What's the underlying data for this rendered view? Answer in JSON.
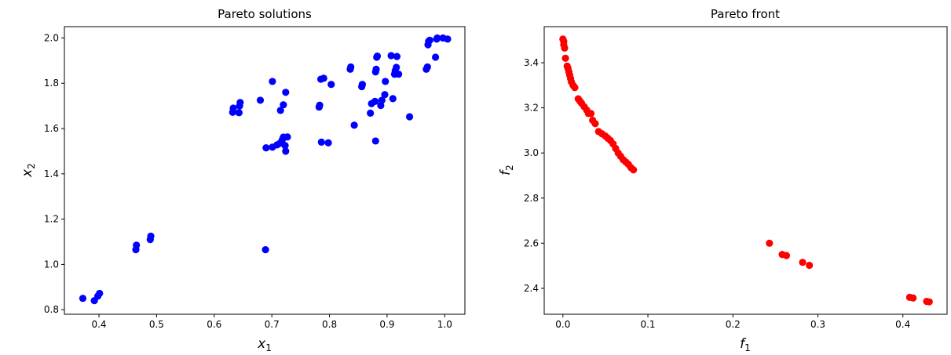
{
  "chart_data": [
    {
      "type": "scatter",
      "title": "Pareto solutions",
      "xlabel": "x",
      "xlabel_sub": "1",
      "ylabel": "x",
      "ylabel_sub": "2",
      "xlim": [
        0.34,
        1.035
      ],
      "ylim": [
        0.78,
        2.05
      ],
      "xticks": [
        0.4,
        0.5,
        0.6,
        0.7,
        0.8,
        0.9,
        1.0
      ],
      "yticks": [
        0.8,
        1.0,
        1.2,
        1.4,
        1.6,
        1.8,
        2.0
      ],
      "grid": false,
      "color": "#0000ff",
      "points": [
        [
          0.372,
          0.85
        ],
        [
          0.392,
          0.84
        ],
        [
          0.398,
          0.86
        ],
        [
          0.401,
          0.872
        ],
        [
          0.464,
          1.065
        ],
        [
          0.465,
          1.085
        ],
        [
          0.489,
          1.11
        ],
        [
          0.49,
          1.125
        ],
        [
          0.689,
          1.065
        ],
        [
          0.632,
          1.672
        ],
        [
          0.633,
          1.69
        ],
        [
          0.643,
          1.67
        ],
        [
          0.644,
          1.7
        ],
        [
          0.645,
          1.715
        ],
        [
          0.68,
          1.725
        ],
        [
          0.701,
          1.808
        ],
        [
          0.715,
          1.68
        ],
        [
          0.72,
          1.705
        ],
        [
          0.724,
          1.76
        ],
        [
          0.69,
          1.515
        ],
        [
          0.701,
          1.518
        ],
        [
          0.709,
          1.528
        ],
        [
          0.714,
          1.535
        ],
        [
          0.718,
          1.55
        ],
        [
          0.72,
          1.562
        ],
        [
          0.723,
          1.525
        ],
        [
          0.724,
          1.5
        ],
        [
          0.727,
          1.563
        ],
        [
          0.782,
          1.695
        ],
        [
          0.783,
          1.703
        ],
        [
          0.785,
          1.818
        ],
        [
          0.79,
          1.822
        ],
        [
          0.803,
          1.795
        ],
        [
          0.786,
          1.54
        ],
        [
          0.798,
          1.537
        ],
        [
          0.843,
          1.615
        ],
        [
          0.88,
          1.545
        ],
        [
          0.836,
          1.862
        ],
        [
          0.837,
          1.872
        ],
        [
          0.856,
          1.785
        ],
        [
          0.857,
          1.795
        ],
        [
          0.871,
          1.668
        ],
        [
          0.873,
          1.71
        ],
        [
          0.879,
          1.72
        ],
        [
          0.88,
          1.85
        ],
        [
          0.881,
          1.862
        ],
        [
          0.882,
          1.915
        ],
        [
          0.883,
          1.92
        ],
        [
          0.889,
          1.702
        ],
        [
          0.891,
          1.725
        ],
        [
          0.896,
          1.75
        ],
        [
          0.897,
          1.808
        ],
        [
          0.907,
          1.922
        ],
        [
          0.91,
          1.732
        ],
        [
          0.913,
          1.84
        ],
        [
          0.914,
          1.855
        ],
        [
          0.916,
          1.87
        ],
        [
          0.917,
          1.918
        ],
        [
          0.92,
          1.84
        ],
        [
          0.939,
          1.652
        ],
        [
          0.968,
          1.862
        ],
        [
          0.97,
          1.872
        ],
        [
          0.971,
          1.97
        ],
        [
          0.972,
          1.985
        ],
        [
          0.974,
          1.99
        ],
        [
          0.984,
          1.915
        ],
        [
          0.986,
          1.995
        ],
        [
          0.987,
          2.0
        ],
        [
          0.997,
          2.0
        ],
        [
          1.005,
          1.995
        ]
      ]
    },
    {
      "type": "scatter",
      "title": "Pareto front",
      "xlabel": "f",
      "xlabel_sub": "1",
      "ylabel": "f",
      "ylabel_sub": "2",
      "xlim": [
        -0.022,
        0.452
      ],
      "ylim": [
        2.285,
        3.56
      ],
      "xticks": [
        0.0,
        0.1,
        0.2,
        0.3,
        0.4
      ],
      "yticks": [
        2.4,
        2.6,
        2.8,
        3.0,
        3.2,
        3.4
      ],
      "grid": false,
      "color": "#ff0000",
      "points": [
        [
          0.0,
          3.505
        ],
        [
          0.001,
          3.495
        ],
        [
          0.001,
          3.48
        ],
        [
          0.002,
          3.465
        ],
        [
          0.003,
          3.42
        ],
        [
          0.005,
          3.385
        ],
        [
          0.006,
          3.375
        ],
        [
          0.007,
          3.36
        ],
        [
          0.008,
          3.345
        ],
        [
          0.009,
          3.33
        ],
        [
          0.01,
          3.315
        ],
        [
          0.012,
          3.3
        ],
        [
          0.014,
          3.29
        ],
        [
          0.018,
          3.24
        ],
        [
          0.02,
          3.23
        ],
        [
          0.022,
          3.22
        ],
        [
          0.025,
          3.205
        ],
        [
          0.028,
          3.19
        ],
        [
          0.03,
          3.175
        ],
        [
          0.033,
          3.175
        ],
        [
          0.035,
          3.145
        ],
        [
          0.038,
          3.13
        ],
        [
          0.042,
          3.095
        ],
        [
          0.046,
          3.085
        ],
        [
          0.05,
          3.075
        ],
        [
          0.053,
          3.065
        ],
        [
          0.056,
          3.055
        ],
        [
          0.059,
          3.04
        ],
        [
          0.062,
          3.02
        ],
        [
          0.065,
          3.0
        ],
        [
          0.068,
          2.985
        ],
        [
          0.071,
          2.97
        ],
        [
          0.074,
          2.96
        ],
        [
          0.077,
          2.95
        ],
        [
          0.08,
          2.935
        ],
        [
          0.083,
          2.925
        ],
        [
          0.243,
          2.6
        ],
        [
          0.258,
          2.55
        ],
        [
          0.263,
          2.545
        ],
        [
          0.282,
          2.515
        ],
        [
          0.29,
          2.502
        ],
        [
          0.408,
          2.36
        ],
        [
          0.412,
          2.357
        ],
        [
          0.428,
          2.342
        ],
        [
          0.431,
          2.34
        ]
      ]
    }
  ]
}
